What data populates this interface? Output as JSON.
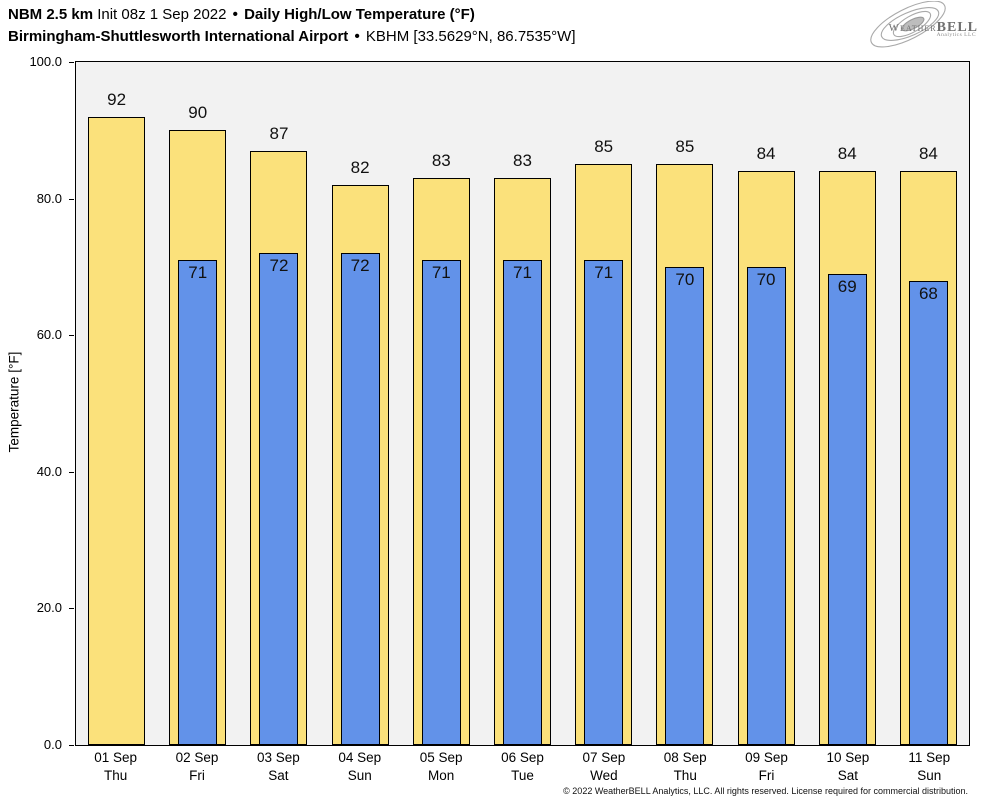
{
  "header": {
    "line1": {
      "model": "NBM 2.5 km",
      "init": "Init 08z 1 Sep 2022",
      "sep": "•",
      "product": "Daily High/Low Temperature (°F)"
    },
    "line2": {
      "station": "Birmingham-Shuttlesworth International Airport",
      "sep": "•",
      "station_id": "KBHM [33.5629°N, 86.7535°W]"
    }
  },
  "logo": {
    "name_caps": "Weather",
    "name_bold": "BELL",
    "subtitle": "Analytics LLC"
  },
  "chart_data": {
    "type": "bar",
    "title": "Daily High/Low Temperature (°F)",
    "ylabel": "Temperature [°F]",
    "ylim": [
      0,
      100
    ],
    "yticks": [
      0,
      20,
      40,
      60,
      80,
      100
    ],
    "ytick_labels": [
      "0.0",
      "20.0",
      "40.0",
      "60.0",
      "80.0",
      "100.0"
    ],
    "grid": false,
    "legend": "none",
    "plot_bg": "#f2f2f2",
    "categories": [
      {
        "date": "01 Sep",
        "day": "Thu"
      },
      {
        "date": "02 Sep",
        "day": "Fri"
      },
      {
        "date": "03 Sep",
        "day": "Sat"
      },
      {
        "date": "04 Sep",
        "day": "Sun"
      },
      {
        "date": "05 Sep",
        "day": "Mon"
      },
      {
        "date": "06 Sep",
        "day": "Tue"
      },
      {
        "date": "07 Sep",
        "day": "Wed"
      },
      {
        "date": "08 Sep",
        "day": "Thu"
      },
      {
        "date": "09 Sep",
        "day": "Fri"
      },
      {
        "date": "10 Sep",
        "day": "Sat"
      },
      {
        "date": "11 Sep",
        "day": "Sun"
      }
    ],
    "series": [
      {
        "name": "Daily High",
        "color": "#fbe17b",
        "values": [
          92,
          90,
          87,
          82,
          83,
          83,
          85,
          85,
          84,
          84,
          84
        ]
      },
      {
        "name": "Daily Low",
        "color": "#6292e9",
        "values": [
          null,
          71,
          72,
          72,
          71,
          71,
          71,
          70,
          70,
          69,
          68
        ]
      }
    ]
  },
  "footer": {
    "copyright": "© 2022 WeatherBELL Analytics, LLC. All rights reserved. License required for commercial distribution."
  }
}
